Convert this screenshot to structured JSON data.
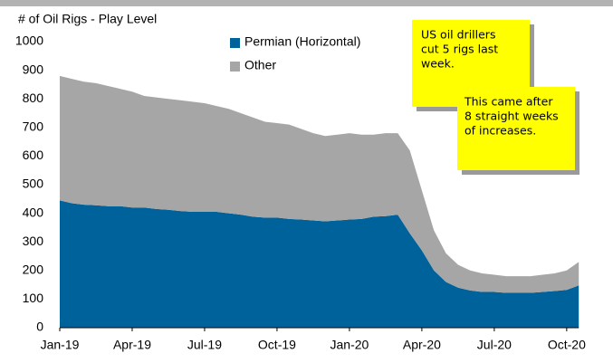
{
  "chart_data": {
    "type": "stacked_area",
    "title": "# of Oil Rigs - Play Level",
    "categories": [
      "Jan-19",
      null,
      null,
      null,
      null,
      null,
      "Apr-19",
      null,
      null,
      null,
      null,
      null,
      "Jul-19",
      null,
      null,
      null,
      null,
      null,
      "Oct-19",
      null,
      null,
      null,
      null,
      null,
      "Jan-20",
      null,
      null,
      null,
      null,
      null,
      "Apr-20",
      null,
      null,
      null,
      null,
      null,
      "Jul-20",
      null,
      null,
      null,
      null,
      null,
      "Oct-20",
      null
    ],
    "series": [
      {
        "name": "Permian (Horizontal)",
        "color": "#00629b",
        "values": [
          445,
          435,
          430,
          428,
          425,
          425,
          420,
          420,
          415,
          412,
          408,
          405,
          405,
          405,
          400,
          395,
          388,
          385,
          385,
          380,
          378,
          375,
          372,
          375,
          378,
          380,
          388,
          390,
          395,
          330,
          270,
          200,
          160,
          140,
          130,
          125,
          125,
          122,
          122,
          122,
          125,
          128,
          132,
          148
        ]
      },
      {
        "name": "Other",
        "color": "#a6a6a6",
        "values": [
          435,
          435,
          430,
          427,
          420,
          410,
          405,
          390,
          390,
          388,
          387,
          385,
          380,
          370,
          365,
          355,
          347,
          335,
          330,
          330,
          317,
          305,
          298,
          300,
          302,
          295,
          287,
          290,
          285,
          290,
          210,
          140,
          100,
          80,
          70,
          65,
          60,
          58,
          58,
          58,
          60,
          62,
          68,
          82
        ]
      }
    ],
    "ylim": [
      0,
      1000
    ],
    "yticks": [
      0,
      100,
      200,
      300,
      400,
      500,
      600,
      700,
      800,
      900,
      1000
    ],
    "annotations": [
      {
        "lines": [
          "US oil drillers",
          "cut 5 rigs last",
          "week."
        ]
      },
      {
        "lines": [
          "This came after",
          "8 straight weeks",
          "of increases."
        ]
      }
    ]
  }
}
